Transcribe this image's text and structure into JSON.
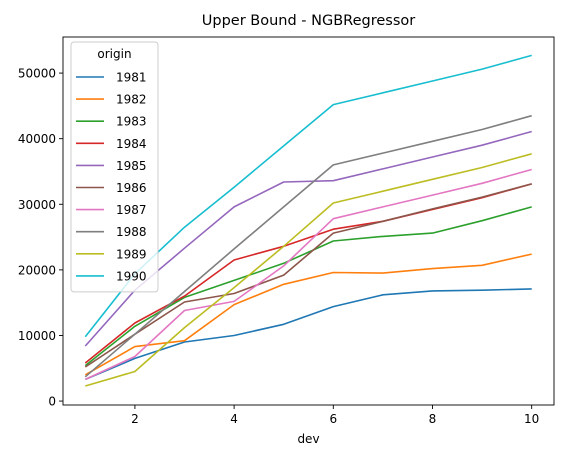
{
  "chart_data": {
    "type": "line",
    "title": "Upper Bound - NGBRegressor",
    "xlabel": "dev",
    "ylabel": "",
    "xlim": [
      0.55,
      10.45
    ],
    "ylim": [
      -600,
      55500
    ],
    "xticks": [
      2,
      4,
      6,
      8,
      10
    ],
    "yticks": [
      0,
      10000,
      20000,
      30000,
      40000,
      50000
    ],
    "grid": false,
    "legend": {
      "title": "origin",
      "placement": "top-left"
    },
    "x": [
      1,
      2,
      3,
      4,
      5,
      6,
      7,
      8,
      9,
      10
    ],
    "series": [
      {
        "name": "1981",
        "color": "#1f77b4",
        "values": [
          3300,
          6500,
          9000,
          10000,
          11700,
          14400,
          16200,
          16800,
          16900,
          17100
        ]
      },
      {
        "name": "1982",
        "color": "#ff7f0e",
        "values": [
          4000,
          8300,
          9200,
          14700,
          17800,
          19600,
          19500,
          20200,
          20700,
          22400
        ]
      },
      {
        "name": "1983",
        "color": "#2ca02c",
        "values": [
          5400,
          11400,
          15800,
          18400,
          21000,
          24400,
          25100,
          25600,
          27500,
          29600
        ]
      },
      {
        "name": "1984",
        "color": "#d62728",
        "values": [
          5800,
          11900,
          16000,
          21500,
          23600,
          26200,
          27400,
          29200,
          31000,
          33100
        ]
      },
      {
        "name": "1985",
        "color": "#9467bd",
        "values": [
          8400,
          16900,
          23300,
          29600,
          33400,
          33600,
          35400,
          37200,
          39000,
          41100
        ]
      },
      {
        "name": "1986",
        "color": "#8c564b",
        "values": [
          5200,
          10200,
          15100,
          16400,
          19200,
          25600,
          27400,
          29300,
          31100,
          33100
        ]
      },
      {
        "name": "1987",
        "color": "#e377c2",
        "values": [
          3300,
          6800,
          13800,
          15200,
          20600,
          27800,
          29600,
          31400,
          33200,
          35300
        ]
      },
      {
        "name": "1988",
        "color": "#7f7f7f",
        "values": [
          3700,
          10200,
          16700,
          23200,
          29600,
          36000,
          37800,
          39600,
          41400,
          43500
        ]
      },
      {
        "name": "1989",
        "color": "#bcbd22",
        "values": [
          2300,
          4500,
          11200,
          17300,
          23600,
          30200,
          32000,
          33800,
          35600,
          37700
        ]
      },
      {
        "name": "1990",
        "color": "#17becf",
        "values": [
          9800,
          19400,
          26500,
          32600,
          38900,
          45200,
          47000,
          48800,
          50600,
          52700
        ]
      }
    ]
  }
}
